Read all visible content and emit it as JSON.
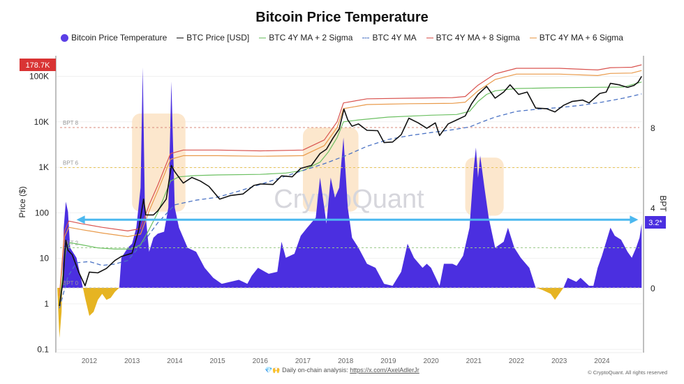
{
  "chart_data": {
    "type": "line",
    "title": "Bitcoin Price Temperature",
    "ylabel": "Price ($)",
    "y2label": "BPT",
    "yscale": "log",
    "ylim": [
      0.1,
      200000
    ],
    "y2lim": [
      -3.2,
      11.5
    ],
    "xlim": [
      2011.25,
      2024.93
    ],
    "yticks": [
      {
        "v": 0.1,
        "label": "0.1"
      },
      {
        "v": 1,
        "label": "1"
      },
      {
        "v": 10,
        "label": "10"
      },
      {
        "v": 100,
        "label": "100"
      },
      {
        "v": 1000,
        "label": "1K"
      },
      {
        "v": 10000,
        "label": "10K"
      },
      {
        "v": 100000,
        "label": "100K"
      }
    ],
    "y2ticks": [
      {
        "v": 0,
        "label": "0"
      },
      {
        "v": 4,
        "label": "4"
      },
      {
        "v": 8,
        "label": "8"
      }
    ],
    "xticks": [
      "2012",
      "2013",
      "2014",
      "2015",
      "2016",
      "2017",
      "2018",
      "2019",
      "2020",
      "2021",
      "2022",
      "2023",
      "2024"
    ],
    "thresholds": [
      {
        "label": "BPT 8",
        "v": 8,
        "color": "#d98a7a"
      },
      {
        "label": "BPT 6",
        "v": 6,
        "color": "#e8c45a"
      },
      {
        "label": "BPT 2",
        "v": 2,
        "color": "#9cc98a"
      },
      {
        "label": "BPT 0",
        "v": 0,
        "color": "#bbbbbb"
      }
    ],
    "current_price_label": "178.7K",
    "current_bpt_label": "3.2*",
    "legend": [
      {
        "name": "Bitcoin Price Temperature",
        "color": "#5b3fe6",
        "kind": "dot"
      },
      {
        "name": "BTC Price [USD]",
        "color": "#111111",
        "kind": "line"
      },
      {
        "name": "BTC 4Y MA + 2 Sigma",
        "color": "#6cc062",
        "kind": "line"
      },
      {
        "name": "BTC 4Y MA",
        "color": "#4a72c4",
        "kind": "dash"
      },
      {
        "name": "BTC 4Y MA + 8 Sigma",
        "color": "#d9534f",
        "kind": "line"
      },
      {
        "name": "BTC 4Y MA + 6 Sigma",
        "color": "#e99a4a",
        "kind": "line"
      }
    ],
    "colors": {
      "bpt_positive": "#4b2fe0",
      "bpt_negative": "#e6b422",
      "arrow": "#4cb8ef",
      "highlight": "#fbe3c4",
      "price_label_bg": "#d93434",
      "bpt_label_bg": "#4b2fe0"
    },
    "highlights": [
      {
        "from": 2013.0,
        "to": 2014.25,
        "bpt_top": 8.7,
        "bpt_bottom": 3.8
      },
      {
        "from": 2017.0,
        "to": 2018.3,
        "bpt_top": 8.0,
        "bpt_bottom": 3.8
      },
      {
        "from": 2020.8,
        "to": 2021.7,
        "bpt_top": 6.5,
        "bpt_bottom": 3.6
      }
    ],
    "arrow": {
      "from": 2011.7,
      "to": 2024.85,
      "bpt": 3.4
    },
    "price": [
      [
        2011.3,
        0.9
      ],
      [
        2011.38,
        3
      ],
      [
        2011.45,
        25
      ],
      [
        2011.5,
        15
      ],
      [
        2011.6,
        12
      ],
      [
        2011.75,
        5
      ],
      [
        2011.9,
        2.5
      ],
      [
        2012.0,
        5
      ],
      [
        2012.2,
        4.8
      ],
      [
        2012.4,
        6
      ],
      [
        2012.6,
        9
      ],
      [
        2012.75,
        11
      ],
      [
        2013.0,
        13
      ],
      [
        2013.15,
        40
      ],
      [
        2013.27,
        200
      ],
      [
        2013.32,
        90
      ],
      [
        2013.5,
        90
      ],
      [
        2013.6,
        110
      ],
      [
        2013.8,
        200
      ],
      [
        2013.92,
        1100
      ],
      [
        2014.0,
        800
      ],
      [
        2014.1,
        600
      ],
      [
        2014.2,
        450
      ],
      [
        2014.4,
        600
      ],
      [
        2014.6,
        500
      ],
      [
        2014.8,
        380
      ],
      [
        2015.05,
        200
      ],
      [
        2015.3,
        240
      ],
      [
        2015.6,
        260
      ],
      [
        2015.85,
        400
      ],
      [
        2016.0,
        430
      ],
      [
        2016.3,
        420
      ],
      [
        2016.5,
        650
      ],
      [
        2016.75,
        620
      ],
      [
        2016.95,
        950
      ],
      [
        2017.2,
        1100
      ],
      [
        2017.4,
        2000
      ],
      [
        2017.55,
        2500
      ],
      [
        2017.7,
        4300
      ],
      [
        2017.85,
        7000
      ],
      [
        2017.96,
        19000
      ],
      [
        2018.05,
        11000
      ],
      [
        2018.15,
        8000
      ],
      [
        2018.3,
        9000
      ],
      [
        2018.5,
        6500
      ],
      [
        2018.75,
        6400
      ],
      [
        2018.9,
        3500
      ],
      [
        2019.1,
        3600
      ],
      [
        2019.3,
        5200
      ],
      [
        2019.48,
        12000
      ],
      [
        2019.7,
        9500
      ],
      [
        2019.9,
        7200
      ],
      [
        2020.1,
        9500
      ],
      [
        2020.2,
        5000
      ],
      [
        2020.4,
        9000
      ],
      [
        2020.6,
        11000
      ],
      [
        2020.8,
        13500
      ],
      [
        2020.95,
        25000
      ],
      [
        2021.1,
        40000
      ],
      [
        2021.3,
        60000
      ],
      [
        2021.5,
        33000
      ],
      [
        2021.7,
        45000
      ],
      [
        2021.85,
        65000
      ],
      [
        2022.05,
        40000
      ],
      [
        2022.25,
        45000
      ],
      [
        2022.45,
        20000
      ],
      [
        2022.7,
        19500
      ],
      [
        2022.9,
        16500
      ],
      [
        2023.1,
        23000
      ],
      [
        2023.3,
        28000
      ],
      [
        2023.55,
        30000
      ],
      [
        2023.7,
        26000
      ],
      [
        2023.95,
        42000
      ],
      [
        2024.1,
        45000
      ],
      [
        2024.2,
        70000
      ],
      [
        2024.4,
        65000
      ],
      [
        2024.6,
        57000
      ],
      [
        2024.75,
        63000
      ],
      [
        2024.85,
        75000
      ],
      [
        2024.93,
        100000
      ]
    ],
    "ma4y": [
      [
        2011.3,
        0.8
      ],
      [
        2011.5,
        4
      ],
      [
        2011.7,
        8
      ],
      [
        2012.0,
        8.5
      ],
      [
        2012.3,
        7
      ],
      [
        2012.6,
        7.5
      ],
      [
        2012.9,
        9
      ],
      [
        2013.3,
        25
      ],
      [
        2013.6,
        60
      ],
      [
        2014.0,
        150
      ],
      [
        2014.5,
        190
      ],
      [
        2015.0,
        220
      ],
      [
        2015.5,
        300
      ],
      [
        2016.0,
        420
      ],
      [
        2016.5,
        600
      ],
      [
        2017.0,
        850
      ],
      [
        2017.5,
        1200
      ],
      [
        2018.0,
        1800
      ],
      [
        2018.5,
        2900
      ],
      [
        2019.0,
        4100
      ],
      [
        2019.5,
        5000
      ],
      [
        2020.0,
        5800
      ],
      [
        2020.5,
        6700
      ],
      [
        2020.9,
        7700
      ],
      [
        2021.2,
        10000
      ],
      [
        2021.5,
        12700
      ],
      [
        2022.0,
        17000
      ],
      [
        2022.5,
        19000
      ],
      [
        2023.0,
        20500
      ],
      [
        2023.5,
        23000
      ],
      [
        2024.0,
        27000
      ],
      [
        2024.5,
        33000
      ],
      [
        2024.93,
        41000
      ]
    ],
    "ma_plus_2sigma": [
      [
        2011.3,
        1
      ],
      [
        2011.45,
        15
      ],
      [
        2011.55,
        22
      ],
      [
        2011.8,
        20
      ],
      [
        2012.2,
        17
      ],
      [
        2012.6,
        16
      ],
      [
        2013.0,
        16
      ],
      [
        2013.2,
        20
      ],
      [
        2013.35,
        35
      ],
      [
        2013.6,
        100
      ],
      [
        2013.9,
        500
      ],
      [
        2014.1,
        620
      ],
      [
        2014.5,
        660
      ],
      [
        2015.0,
        680
      ],
      [
        2016.0,
        700
      ],
      [
        2016.6,
        750
      ],
      [
        2017.0,
        850
      ],
      [
        2017.4,
        1300
      ],
      [
        2017.6,
        2200
      ],
      [
        2017.8,
        4500
      ],
      [
        2017.95,
        10000
      ],
      [
        2018.3,
        11000
      ],
      [
        2019.0,
        12700
      ],
      [
        2020.0,
        14000
      ],
      [
        2020.6,
        14500
      ],
      [
        2020.9,
        17000
      ],
      [
        2021.1,
        28000
      ],
      [
        2021.3,
        40000
      ],
      [
        2021.5,
        48000
      ],
      [
        2022.0,
        54000
      ],
      [
        2023.0,
        56000
      ],
      [
        2024.5,
        58000
      ],
      [
        2024.93,
        75000
      ]
    ],
    "ma_plus_8sigma": [
      [
        2011.3,
        1.5
      ],
      [
        2011.42,
        40
      ],
      [
        2011.52,
        66
      ],
      [
        2011.8,
        58
      ],
      [
        2012.3,
        48
      ],
      [
        2012.9,
        40
      ],
      [
        2013.2,
        45
      ],
      [
        2013.4,
        150
      ],
      [
        2013.6,
        400
      ],
      [
        2013.9,
        2000
      ],
      [
        2014.2,
        2400
      ],
      [
        2015.0,
        2400
      ],
      [
        2016.0,
        2300
      ],
      [
        2017.0,
        2400
      ],
      [
        2017.5,
        4000
      ],
      [
        2017.8,
        10000
      ],
      [
        2017.95,
        26000
      ],
      [
        2018.5,
        32000
      ],
      [
        2019.5,
        33000
      ],
      [
        2020.5,
        34000
      ],
      [
        2020.8,
        36000
      ],
      [
        2021.1,
        64000
      ],
      [
        2021.5,
        113000
      ],
      [
        2022.0,
        150000
      ],
      [
        2023.0,
        150000
      ],
      [
        2023.9,
        138000
      ],
      [
        2024.2,
        155000
      ],
      [
        2024.7,
        158000
      ],
      [
        2024.93,
        178700
      ]
    ],
    "ma_plus_6sigma": [
      [
        2011.3,
        1.2
      ],
      [
        2011.42,
        30
      ],
      [
        2011.52,
        48
      ],
      [
        2011.8,
        43
      ],
      [
        2012.3,
        36
      ],
      [
        2012.9,
        30
      ],
      [
        2013.2,
        34
      ],
      [
        2013.4,
        110
      ],
      [
        2013.6,
        300
      ],
      [
        2013.9,
        1500
      ],
      [
        2014.2,
        1800
      ],
      [
        2015.0,
        1800
      ],
      [
        2016.0,
        1750
      ],
      [
        2017.0,
        1800
      ],
      [
        2017.5,
        3000
      ],
      [
        2017.8,
        7500
      ],
      [
        2017.95,
        19500
      ],
      [
        2018.5,
        24000
      ],
      [
        2019.5,
        25000
      ],
      [
        2020.5,
        25500
      ],
      [
        2020.8,
        27000
      ],
      [
        2021.1,
        48000
      ],
      [
        2021.5,
        85000
      ],
      [
        2022.0,
        112000
      ],
      [
        2023.0,
        112000
      ],
      [
        2023.9,
        104000
      ],
      [
        2024.2,
        116000
      ],
      [
        2024.7,
        118000
      ],
      [
        2024.93,
        134000
      ]
    ],
    "bpt": [
      [
        2011.25,
        0
      ],
      [
        2011.3,
        -2.5
      ],
      [
        2011.35,
        -1.2
      ],
      [
        2011.4,
        3
      ],
      [
        2011.45,
        4.3
      ],
      [
        2011.5,
        3.8
      ],
      [
        2011.55,
        2
      ],
      [
        2011.7,
        1.5
      ],
      [
        2011.8,
        0.5
      ],
      [
        2011.9,
        -0.5
      ],
      [
        2012.0,
        -1.4
      ],
      [
        2012.1,
        -1.2
      ],
      [
        2012.2,
        -0.6
      ],
      [
        2012.3,
        -0.3
      ],
      [
        2012.4,
        -0.6
      ],
      [
        2012.5,
        -0.5
      ],
      [
        2012.6,
        -0.2
      ],
      [
        2012.7,
        0
      ],
      [
        2012.75,
        1.5
      ],
      [
        2012.9,
        2.0
      ],
      [
        2013.0,
        2.2
      ],
      [
        2013.1,
        3
      ],
      [
        2013.2,
        5
      ],
      [
        2013.25,
        11
      ],
      [
        2013.3,
        4
      ],
      [
        2013.4,
        1.8
      ],
      [
        2013.5,
        2.5
      ],
      [
        2013.6,
        2.7
      ],
      [
        2013.75,
        2.8
      ],
      [
        2013.85,
        4
      ],
      [
        2013.92,
        10.3
      ],
      [
        2014.0,
        4
      ],
      [
        2014.1,
        3
      ],
      [
        2014.3,
        2
      ],
      [
        2014.5,
        1.8
      ],
      [
        2014.7,
        1.0
      ],
      [
        2014.9,
        0.5
      ],
      [
        2015.1,
        0.2
      ],
      [
        2015.3,
        0.3
      ],
      [
        2015.5,
        0.4
      ],
      [
        2015.7,
        0.2
      ],
      [
        2015.8,
        0.6
      ],
      [
        2015.95,
        1.0
      ],
      [
        2016.2,
        0.7
      ],
      [
        2016.4,
        0.8
      ],
      [
        2016.5,
        2.3
      ],
      [
        2016.6,
        1.5
      ],
      [
        2016.8,
        1.7
      ],
      [
        2016.95,
        2.6
      ],
      [
        2017.1,
        3
      ],
      [
        2017.3,
        3.5
      ],
      [
        2017.4,
        5.5
      ],
      [
        2017.5,
        4
      ],
      [
        2017.55,
        3.2
      ],
      [
        2017.65,
        5.5
      ],
      [
        2017.75,
        4.5
      ],
      [
        2017.85,
        5
      ],
      [
        2017.95,
        7.5
      ],
      [
        2018.05,
        4
      ],
      [
        2018.15,
        2.5
      ],
      [
        2018.3,
        2
      ],
      [
        2018.5,
        1.2
      ],
      [
        2018.7,
        1.0
      ],
      [
        2018.9,
        0.2
      ],
      [
        2019.1,
        0.1
      ],
      [
        2019.3,
        0.8
      ],
      [
        2019.45,
        2.2
      ],
      [
        2019.6,
        1.5
      ],
      [
        2019.8,
        1.0
      ],
      [
        2019.9,
        1.2
      ],
      [
        2020.0,
        1.0
      ],
      [
        2020.2,
        0.1
      ],
      [
        2020.3,
        1.2
      ],
      [
        2020.5,
        1.2
      ],
      [
        2020.6,
        1.1
      ],
      [
        2020.75,
        1.6
      ],
      [
        2020.9,
        3.0
      ],
      [
        2021.0,
        6.0
      ],
      [
        2021.05,
        7.0
      ],
      [
        2021.1,
        5.5
      ],
      [
        2021.15,
        6.6
      ],
      [
        2021.25,
        5.0
      ],
      [
        2021.35,
        3.5
      ],
      [
        2021.5,
        2.0
      ],
      [
        2021.7,
        2.3
      ],
      [
        2021.8,
        3.0
      ],
      [
        2021.95,
        2.0
      ],
      [
        2022.1,
        1.5
      ],
      [
        2022.3,
        1.0
      ],
      [
        2022.45,
        0.0
      ],
      [
        2022.6,
        -0.1
      ],
      [
        2022.8,
        -0.3
      ],
      [
        2022.9,
        -0.6
      ],
      [
        2023.0,
        -0.3
      ],
      [
        2023.1,
        0.0
      ],
      [
        2023.2,
        0.5
      ],
      [
        2023.4,
        0.3
      ],
      [
        2023.5,
        0.5
      ],
      [
        2023.7,
        0.1
      ],
      [
        2023.8,
        0.1
      ],
      [
        2023.9,
        1.0
      ],
      [
        2024.0,
        1.6
      ],
      [
        2024.2,
        3.0
      ],
      [
        2024.3,
        2.6
      ],
      [
        2024.45,
        2.4
      ],
      [
        2024.6,
        1.8
      ],
      [
        2024.7,
        1.5
      ],
      [
        2024.8,
        2.0
      ],
      [
        2024.88,
        2.5
      ],
      [
        2024.93,
        3.2
      ]
    ]
  },
  "watermark": "CryptoQuant",
  "footer": {
    "text": "Daily on-chain analysis:",
    "link": "https://x.com/AxelAdlerJr",
    "emoji": "💎🙌",
    "copyright": "© CryptoQuant. All rights reserved"
  }
}
